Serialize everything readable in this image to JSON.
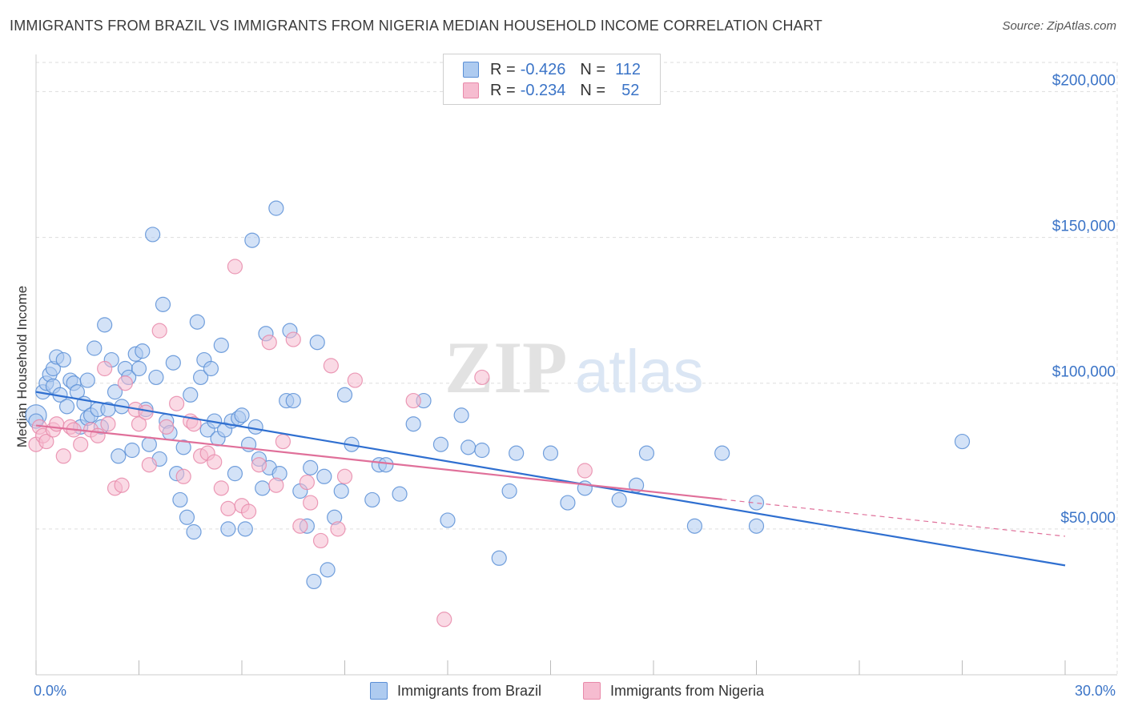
{
  "title": "IMMIGRANTS FROM BRAZIL VS IMMIGRANTS FROM NIGERIA MEDIAN HOUSEHOLD INCOME CORRELATION CHART",
  "source": "Source: ZipAtlas.com",
  "watermark": {
    "zip": "ZIP",
    "atlas": "atlas"
  },
  "legend_top": {
    "rows": [
      {
        "r_label": "R =",
        "r_value": "-0.426",
        "n_label": "N =",
        "n_value": "112"
      },
      {
        "r_label": "R =",
        "r_value": "-0.234",
        "n_label": "N =",
        "n_value": "52"
      }
    ]
  },
  "colors": {
    "brazil_fill": "#aecbf0",
    "brazil_stroke": "#5b8fd6",
    "brazil_line": "#2f6fd0",
    "nigeria_fill": "#f6bcd0",
    "nigeria_stroke": "#e88aaa",
    "nigeria_line": "#e0709a",
    "axis_text": "#3b74c7",
    "grid": "#dddddd"
  },
  "chart_data": {
    "type": "scatter",
    "title": "IMMIGRANTS FROM BRAZIL VS IMMIGRANTS FROM NIGERIA MEDIAN HOUSEHOLD INCOME CORRELATION CHART",
    "xlabel": "",
    "ylabel": "Median Household Income",
    "xlim": [
      0,
      30
    ],
    "ylim": [
      0,
      210000
    ],
    "x_tick_labels": [
      "0.0%",
      "30.0%"
    ],
    "y_ticks": [
      50000,
      100000,
      150000,
      200000
    ],
    "y_tick_labels": [
      "$50,000",
      "$100,000",
      "$150,000",
      "$200,000"
    ],
    "grid": true,
    "legend_position": "top-center",
    "series": [
      {
        "name": "Immigrants from Brazil",
        "r": -0.426,
        "n": 112,
        "trend": {
          "x": [
            0,
            30
          ],
          "y": [
            97000,
            37500
          ]
        },
        "points": [
          [
            0.0,
            89000
          ],
          [
            0.0,
            87000
          ],
          [
            0.2,
            97000
          ],
          [
            0.3,
            100000
          ],
          [
            0.4,
            103000
          ],
          [
            0.5,
            105000
          ],
          [
            0.6,
            109000
          ],
          [
            0.5,
            99000
          ],
          [
            0.7,
            96000
          ],
          [
            0.8,
            108000
          ],
          [
            0.9,
            92000
          ],
          [
            1.0,
            101000
          ],
          [
            1.1,
            100000
          ],
          [
            1.2,
            97000
          ],
          [
            1.3,
            85000
          ],
          [
            1.4,
            93000
          ],
          [
            1.5,
            101000
          ],
          [
            1.5,
            88000
          ],
          [
            1.6,
            89000
          ],
          [
            1.7,
            112000
          ],
          [
            1.8,
            91000
          ],
          [
            1.9,
            85000
          ],
          [
            2.0,
            120000
          ],
          [
            2.1,
            91000
          ],
          [
            2.2,
            108000
          ],
          [
            2.3,
            97000
          ],
          [
            2.4,
            75000
          ],
          [
            2.5,
            92000
          ],
          [
            2.6,
            105000
          ],
          [
            2.7,
            102000
          ],
          [
            2.8,
            77000
          ],
          [
            2.9,
            110000
          ],
          [
            3.0,
            105000
          ],
          [
            3.1,
            111000
          ],
          [
            3.2,
            91000
          ],
          [
            3.3,
            79000
          ],
          [
            3.4,
            151000
          ],
          [
            3.5,
            102000
          ],
          [
            3.6,
            74000
          ],
          [
            3.7,
            127000
          ],
          [
            3.8,
            87000
          ],
          [
            3.9,
            83000
          ],
          [
            4.0,
            107000
          ],
          [
            4.1,
            69000
          ],
          [
            4.2,
            60000
          ],
          [
            4.3,
            78000
          ],
          [
            4.4,
            54000
          ],
          [
            4.5,
            96000
          ],
          [
            4.6,
            49000
          ],
          [
            4.7,
            121000
          ],
          [
            4.8,
            102000
          ],
          [
            4.9,
            108000
          ],
          [
            5.0,
            84000
          ],
          [
            5.1,
            105000
          ],
          [
            5.2,
            87000
          ],
          [
            5.3,
            81000
          ],
          [
            5.4,
            113000
          ],
          [
            5.5,
            84000
          ],
          [
            5.6,
            50000
          ],
          [
            5.7,
            87000
          ],
          [
            5.8,
            69000
          ],
          [
            5.9,
            88000
          ],
          [
            6.0,
            89000
          ],
          [
            6.1,
            50000
          ],
          [
            6.2,
            79000
          ],
          [
            6.3,
            149000
          ],
          [
            6.4,
            85000
          ],
          [
            6.5,
            74000
          ],
          [
            6.6,
            64000
          ],
          [
            6.7,
            117000
          ],
          [
            6.8,
            71000
          ],
          [
            7.0,
            160000
          ],
          [
            7.1,
            69000
          ],
          [
            7.3,
            94000
          ],
          [
            7.4,
            118000
          ],
          [
            7.5,
            94000
          ],
          [
            7.7,
            63000
          ],
          [
            7.9,
            51000
          ],
          [
            8.0,
            71000
          ],
          [
            8.1,
            32000
          ],
          [
            8.2,
            114000
          ],
          [
            8.4,
            68000
          ],
          [
            8.5,
            36000
          ],
          [
            8.7,
            54000
          ],
          [
            8.9,
            63000
          ],
          [
            9.0,
            96000
          ],
          [
            9.2,
            79000
          ],
          [
            9.8,
            60000
          ],
          [
            10.0,
            72000
          ],
          [
            10.2,
            72000
          ],
          [
            10.6,
            62000
          ],
          [
            11.0,
            86000
          ],
          [
            11.3,
            94000
          ],
          [
            11.8,
            79000
          ],
          [
            12.0,
            53000
          ],
          [
            12.4,
            89000
          ],
          [
            12.6,
            78000
          ],
          [
            13.0,
            77000
          ],
          [
            13.5,
            40000
          ],
          [
            13.8,
            63000
          ],
          [
            14.0,
            76000
          ],
          [
            15.0,
            76000
          ],
          [
            15.5,
            59000
          ],
          [
            16.0,
            64000
          ],
          [
            17.0,
            60000
          ],
          [
            17.5,
            65000
          ],
          [
            17.8,
            76000
          ],
          [
            19.2,
            51000
          ],
          [
            20.0,
            76000
          ],
          [
            21.0,
            59000
          ],
          [
            21.0,
            51000
          ],
          [
            27.0,
            80000
          ]
        ]
      },
      {
        "name": "Immigrants from Nigeria",
        "r": -0.234,
        "n": 52,
        "trend": {
          "x": [
            0,
            30
          ],
          "y": [
            85500,
            47500
          ]
        },
        "points": [
          [
            0.0,
            79000
          ],
          [
            0.1,
            85000
          ],
          [
            0.2,
            82000
          ],
          [
            0.3,
            80000
          ],
          [
            0.5,
            84000
          ],
          [
            0.6,
            86000
          ],
          [
            0.8,
            75000
          ],
          [
            1.0,
            85000
          ],
          [
            1.1,
            84000
          ],
          [
            1.3,
            79000
          ],
          [
            1.6,
            84000
          ],
          [
            1.8,
            82000
          ],
          [
            2.0,
            105000
          ],
          [
            2.1,
            86000
          ],
          [
            2.3,
            64000
          ],
          [
            2.5,
            65000
          ],
          [
            2.6,
            100000
          ],
          [
            2.9,
            91000
          ],
          [
            3.0,
            86000
          ],
          [
            3.2,
            90000
          ],
          [
            3.3,
            72000
          ],
          [
            3.6,
            118000
          ],
          [
            3.8,
            85000
          ],
          [
            4.1,
            93000
          ],
          [
            4.3,
            68000
          ],
          [
            4.5,
            87000
          ],
          [
            4.6,
            86000
          ],
          [
            4.8,
            75000
          ],
          [
            5.0,
            76000
          ],
          [
            5.2,
            73000
          ],
          [
            5.4,
            64000
          ],
          [
            5.6,
            57000
          ],
          [
            5.8,
            140000
          ],
          [
            6.0,
            58000
          ],
          [
            6.2,
            56000
          ],
          [
            6.5,
            72000
          ],
          [
            6.8,
            114000
          ],
          [
            7.0,
            65000
          ],
          [
            7.2,
            80000
          ],
          [
            7.5,
            115000
          ],
          [
            7.7,
            51000
          ],
          [
            7.9,
            66000
          ],
          [
            8.0,
            59000
          ],
          [
            8.3,
            46000
          ],
          [
            8.6,
            106000
          ],
          [
            8.8,
            50000
          ],
          [
            9.0,
            68000
          ],
          [
            9.3,
            101000
          ],
          [
            11.0,
            94000
          ],
          [
            11.9,
            19000
          ],
          [
            13.0,
            102000
          ],
          [
            16.0,
            70000
          ]
        ]
      }
    ]
  },
  "legend_bottom": [
    {
      "label": "Immigrants from Brazil"
    },
    {
      "label": "Immigrants from Nigeria"
    }
  ]
}
